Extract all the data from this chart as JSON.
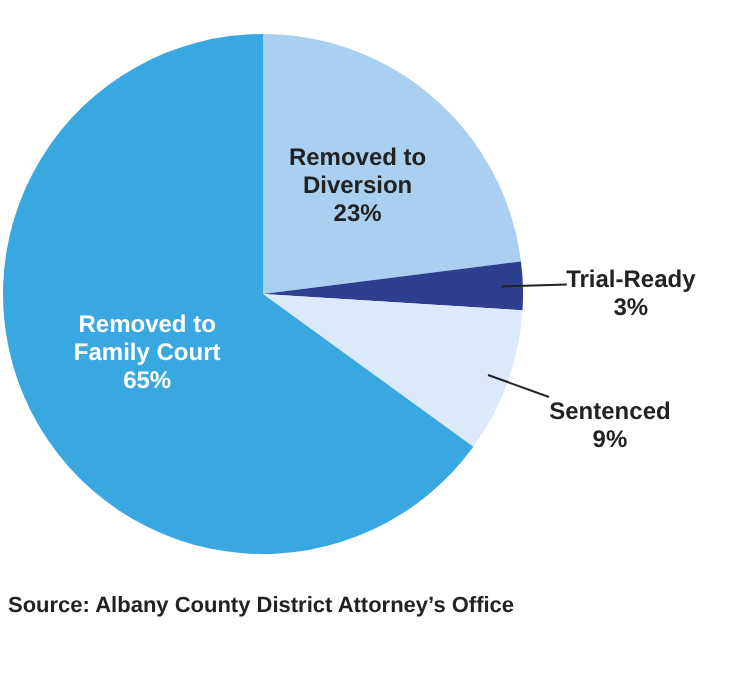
{
  "chart_data": {
    "type": "pie",
    "categories": [
      "Removed to Diversion",
      "Trial-Ready",
      "Sentenced",
      "Removed to Family Court"
    ],
    "values": [
      23,
      3,
      9,
      65
    ],
    "colors": [
      "#a9d0f0",
      "#2e3f8f",
      "#dce9f8",
      "#3aa8e0"
    ],
    "value_labels": [
      "23%",
      "3%",
      "9%",
      "65%"
    ],
    "annotations": [
      "Source: Albany County District Attorney’s Office"
    ]
  }
}
